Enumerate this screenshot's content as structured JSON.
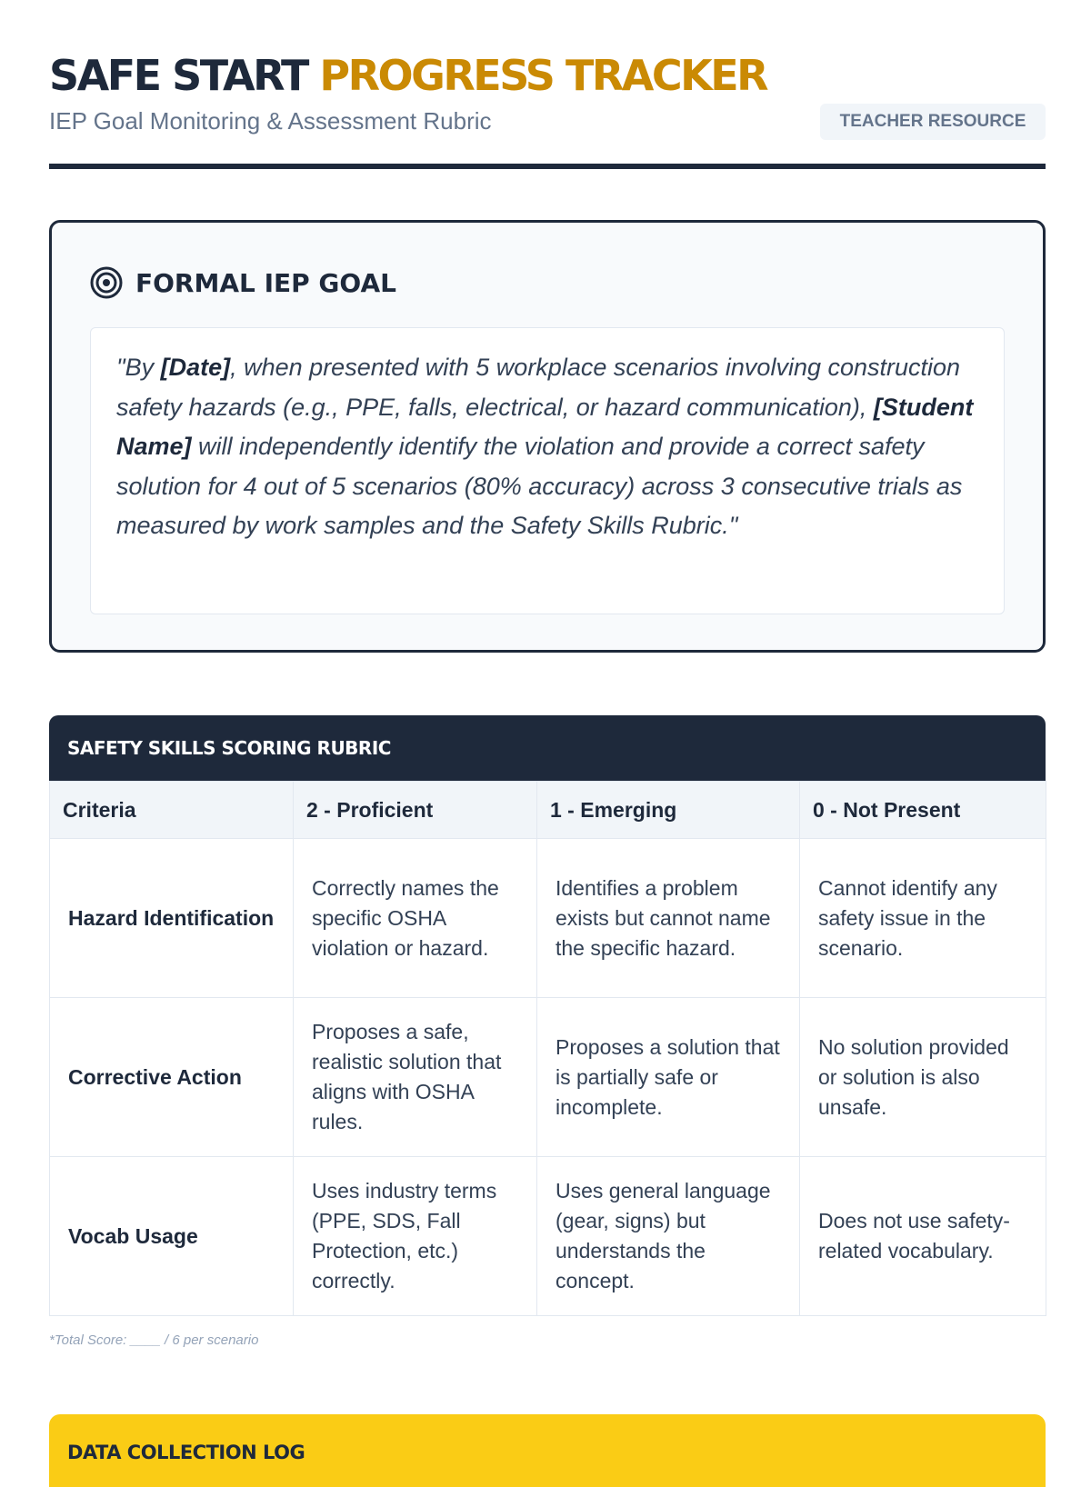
{
  "header": {
    "title_part1": "SAFE START",
    "title_part2": "PROGRESS TRACKER",
    "subtitle": "IEP Goal Monitoring & Assessment Rubric",
    "badge": "TEACHER RESOURCE"
  },
  "goal": {
    "icon": "target-icon",
    "title": "FORMAL IEP GOAL",
    "text": [
      "\"By ",
      "[Date]",
      ", when presented with 5 workplace scenarios involving construction safety hazards (e.g., PPE, falls, electrical, or hazard communication), ",
      "[Student Name]",
      " will independently identify the violation and provide a correct safety solution for 4 out of 5 scenarios (80% accuracy) across 3 consecutive trials as measured by work samples and the Safety Skills Rubric.\""
    ]
  },
  "rubric": {
    "title": "SAFETY SKILLS SCORING RUBRIC",
    "columns": [
      "Criteria",
      "2 - Proficient",
      "1 - Emerging",
      "0 - Not Present"
    ],
    "rows": [
      [
        "Hazard Identification",
        "Correctly names the specific OSHA violation or hazard.",
        "Identifies a problem exists but cannot name the specific hazard.",
        "Cannot identify any safety issue in the scenario."
      ],
      [
        "Corrective Action",
        "Proposes a safe, realistic solution that aligns with OSHA rules.",
        "Proposes a solution that is partially safe or incomplete.",
        "No solution provided or solution is also unsafe."
      ],
      [
        "Vocab Usage",
        "Uses industry terms (PPE, SDS, Fall Protection, etc.) correctly.",
        "Uses general language (gear, signs) but understands the concept.",
        "Does not use safety-related vocabulary."
      ]
    ],
    "note": "*Total Score: ____ / 6 per scenario"
  },
  "log": {
    "title": "DATA COLLECTION LOG"
  },
  "colors": {
    "navy": "#1e293b",
    "gold": "#ca8a04",
    "yellow": "#facc15"
  }
}
